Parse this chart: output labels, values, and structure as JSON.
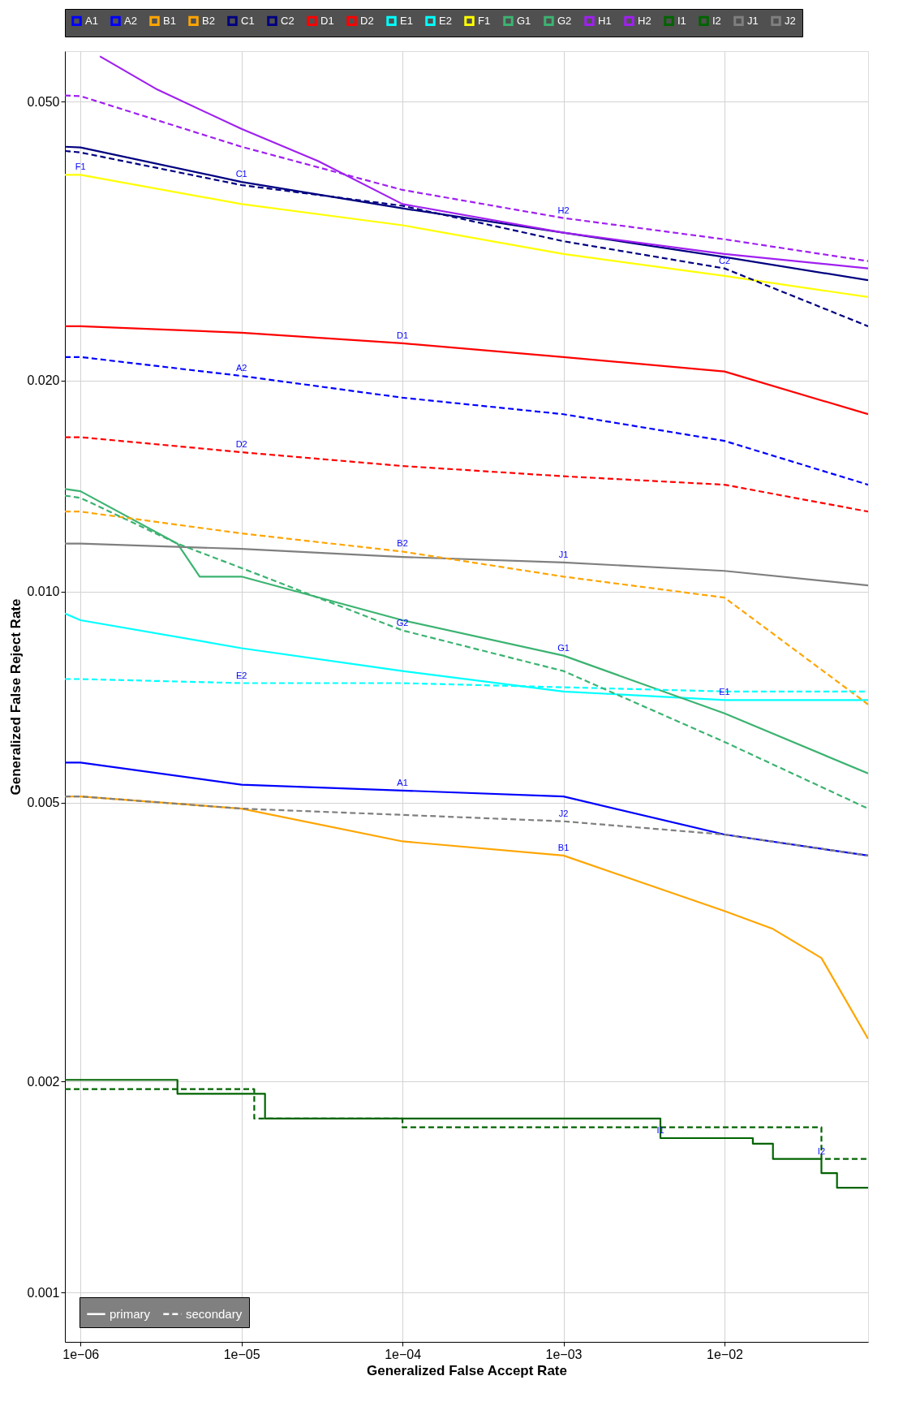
{
  "chart_data": {
    "type": "line",
    "xlabel": "Generalized False Accept Rate",
    "ylabel": "Generalized False Reject Rate",
    "log": "xy",
    "grid": true,
    "legend": "top",
    "xlim": [
      8e-07,
      0.078
    ],
    "ylim": [
      0.00085,
      0.059
    ],
    "xticks": [
      {
        "value": 1e-06,
        "label": "1e−06"
      },
      {
        "value": 1e-05,
        "label": "1e−05"
      },
      {
        "value": 0.0001,
        "label": "1e−04"
      },
      {
        "value": 0.001,
        "label": "1e−03"
      },
      {
        "value": 0.01,
        "label": "1e−02"
      }
    ],
    "yticks": [
      {
        "value": 0.001,
        "label": "0.001"
      },
      {
        "value": 0.002,
        "label": "0.002"
      },
      {
        "value": 0.005,
        "label": "0.005"
      },
      {
        "value": 0.01,
        "label": "0.010"
      },
      {
        "value": 0.02,
        "label": "0.020"
      },
      {
        "value": 0.05,
        "label": "0.050"
      }
    ],
    "series": [
      {
        "name": "A1",
        "color": "#0000ff",
        "line_style": "solid",
        "x": [
          8e-07,
          1e-06,
          1e-05,
          0.0001,
          0.001,
          0.01,
          0.078
        ],
        "values": [
          0.0057,
          0.0057,
          0.0053,
          0.0052,
          0.0051,
          0.0045,
          0.0042
        ]
      },
      {
        "name": "A2",
        "color": "#0000ff",
        "line_style": "dashed",
        "x": [
          8e-07,
          1e-06,
          1e-05,
          0.0001,
          0.001,
          0.01,
          0.078
        ],
        "values": [
          0.0216,
          0.0216,
          0.0203,
          0.0189,
          0.0179,
          0.0164,
          0.0142
        ]
      },
      {
        "name": "B1",
        "color": "#ffa500",
        "line_style": "solid",
        "x": [
          8e-07,
          1e-06,
          1e-05,
          0.0001,
          0.001,
          0.01,
          0.02,
          0.04,
          0.078
        ],
        "values": [
          0.0051,
          0.0051,
          0.0049,
          0.0044,
          0.0042,
          0.0035,
          0.0033,
          0.003,
          0.0023
        ]
      },
      {
        "name": "B2",
        "color": "#ffa500",
        "line_style": "dashed",
        "x": [
          8e-07,
          1e-06,
          1e-05,
          0.0001,
          0.001,
          0.01,
          0.078
        ],
        "values": [
          0.013,
          0.013,
          0.0121,
          0.0114,
          0.0105,
          0.0098,
          0.0069
        ]
      },
      {
        "name": "C1",
        "color": "#000080",
        "line_style": "solid",
        "x": [
          8e-07,
          1e-06,
          1e-05,
          0.0001,
          0.001,
          0.01,
          0.078
        ],
        "values": [
          0.0431,
          0.043,
          0.0384,
          0.0352,
          0.0325,
          0.03,
          0.0278
        ]
      },
      {
        "name": "C2",
        "color": "#000080",
        "line_style": "dashed",
        "x": [
          8e-07,
          1e-06,
          1e-05,
          0.0001,
          0.001,
          0.01,
          0.078
        ],
        "values": [
          0.0425,
          0.0423,
          0.038,
          0.0355,
          0.0316,
          0.0289,
          0.0239
        ]
      },
      {
        "name": "D1",
        "color": "#ff0000",
        "line_style": "solid",
        "x": [
          8e-07,
          1e-06,
          1e-05,
          0.0001,
          0.001,
          0.01,
          0.078
        ],
        "values": [
          0.0239,
          0.0239,
          0.0234,
          0.0226,
          0.0216,
          0.0206,
          0.0179
        ]
      },
      {
        "name": "D2",
        "color": "#ff0000",
        "line_style": "dashed",
        "x": [
          8e-07,
          1e-06,
          1e-05,
          0.0001,
          0.001,
          0.01,
          0.078
        ],
        "values": [
          0.0166,
          0.0166,
          0.0158,
          0.0151,
          0.0146,
          0.0142,
          0.013
        ]
      },
      {
        "name": "E1",
        "color": "#00ffff",
        "line_style": "solid",
        "x": [
          8e-07,
          1e-06,
          1e-05,
          0.0001,
          0.001,
          0.01,
          0.078
        ],
        "values": [
          0.0093,
          0.0091,
          0.0083,
          0.0077,
          0.0072,
          0.007,
          0.007
        ]
      },
      {
        "name": "E2",
        "color": "#00ffff",
        "line_style": "dashed",
        "x": [
          8e-07,
          1e-06,
          1e-05,
          0.0001,
          0.001,
          0.01,
          0.078
        ],
        "values": [
          0.0075,
          0.0075,
          0.0074,
          0.0074,
          0.0073,
          0.0072,
          0.0072
        ]
      },
      {
        "name": "F1",
        "color": "#ffff00",
        "line_style": "solid",
        "x": [
          8e-07,
          1e-06,
          1e-05,
          0.0001,
          0.001,
          0.01,
          0.078
        ],
        "values": [
          0.0393,
          0.0393,
          0.0357,
          0.0333,
          0.0303,
          0.0282,
          0.0263
        ]
      },
      {
        "name": "G1",
        "color": "#3cb371",
        "line_style": "solid",
        "x": [
          8e-07,
          1e-06,
          4e-06,
          5.5e-06,
          1e-05,
          0.0001,
          0.001,
          0.01,
          0.078
        ],
        "values": [
          0.014,
          0.0139,
          0.0117,
          0.0105,
          0.0105,
          0.0091,
          0.0081,
          0.0067,
          0.0055
        ]
      },
      {
        "name": "G2",
        "color": "#3cb371",
        "line_style": "dashed",
        "x": [
          8e-07,
          1e-06,
          4e-06,
          1e-05,
          0.0001,
          0.001,
          0.01,
          0.078
        ],
        "values": [
          0.0137,
          0.0136,
          0.0117,
          0.0108,
          0.0088,
          0.0077,
          0.0061,
          0.0049
        ]
      },
      {
        "name": "H1",
        "color": "#a020f0",
        "line_style": "solid",
        "x": [
          1.32e-06,
          3e-06,
          1e-05,
          3e-05,
          0.0001,
          0.001,
          0.01,
          0.078
        ],
        "values": [
          0.058,
          0.052,
          0.0457,
          0.0411,
          0.0357,
          0.0325,
          0.0303,
          0.0289
        ]
      },
      {
        "name": "H2",
        "color": "#a020f0",
        "line_style": "dashed",
        "x": [
          8e-07,
          1e-06,
          1e-05,
          0.0001,
          0.001,
          0.01,
          0.078
        ],
        "values": [
          0.051,
          0.0509,
          0.0431,
          0.0374,
          0.0341,
          0.0318,
          0.0296
        ]
      },
      {
        "name": "I1",
        "type": "step",
        "color": "#006400",
        "line_style": "solid",
        "x": [
          8e-07,
          4e-06,
          1.4e-05,
          0.004,
          0.015,
          0.02,
          0.04,
          0.05,
          0.078
        ],
        "values": [
          0.00201,
          0.00192,
          0.00177,
          0.00166,
          0.00163,
          0.00155,
          0.00148,
          0.00141,
          0.00141
        ]
      },
      {
        "name": "I2",
        "type": "step",
        "color": "#006400",
        "line_style": "dashed",
        "x": [
          8e-07,
          1.2e-05,
          0.0001,
          0.04,
          0.078
        ],
        "values": [
          0.00195,
          0.00177,
          0.00172,
          0.00155,
          0.00155
        ]
      },
      {
        "name": "J1",
        "color": "#7f7f7f",
        "line_style": "solid",
        "x": [
          8e-07,
          1e-06,
          1e-05,
          0.0001,
          0.001,
          0.01,
          0.078
        ],
        "values": [
          0.0117,
          0.0117,
          0.0115,
          0.0112,
          0.011,
          0.0107,
          0.0102
        ]
      },
      {
        "name": "J2",
        "color": "#7f7f7f",
        "line_style": "dashed",
        "x": [
          8e-07,
          1e-06,
          1e-05,
          0.0001,
          0.001,
          0.01,
          0.078
        ],
        "values": [
          0.0051,
          0.0051,
          0.0049,
          0.0048,
          0.0047,
          0.0045,
          0.0042
        ]
      }
    ],
    "annotations": [
      "primary",
      "secondary",
      {
        "text": "C1",
        "x": 1e-05,
        "y": 0.0384
      },
      {
        "text": "F1",
        "x": 1e-06,
        "y": 0.0393
      },
      {
        "text": "A2",
        "x": 1e-05,
        "y": 0.0203
      },
      {
        "text": "D1",
        "x": 0.0001,
        "y": 0.0226
      },
      {
        "text": "D2",
        "x": 1e-05,
        "y": 0.0158
      },
      {
        "text": "B2",
        "x": 0.0001,
        "y": 0.0114
      },
      {
        "text": "J1",
        "x": 0.001,
        "y": 0.011
      },
      {
        "text": "H2",
        "x": 0.001,
        "y": 0.0341
      },
      {
        "text": "C2",
        "x": 0.01,
        "y": 0.0289
      },
      {
        "text": "G2",
        "x": 0.0001,
        "y": 0.0088
      },
      {
        "text": "G1",
        "x": 0.001,
        "y": 0.0081
      },
      {
        "text": "E1",
        "x": 0.01,
        "y": 0.007
      },
      {
        "text": "E2",
        "x": 1e-05,
        "y": 0.0074
      },
      {
        "text": "A1",
        "x": 0.0001,
        "y": 0.0052
      },
      {
        "text": "J2",
        "x": 0.001,
        "y": 0.0047
      },
      {
        "text": "B1",
        "x": 0.001,
        "y": 0.0042
      },
      {
        "text": "I1",
        "x": 0.004,
        "y": 0.00166
      },
      {
        "text": "I2",
        "x": 0.04,
        "y": 0.00155
      }
    ]
  }
}
